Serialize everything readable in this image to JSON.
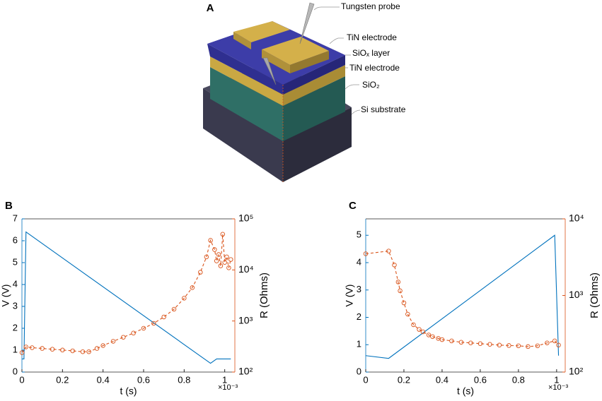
{
  "diagram": {
    "panel": "A",
    "labels": [
      "Tungsten probe",
      "TiN electrode",
      "SiOₓ layer",
      "TiN electrode",
      "SiO₂",
      "Si substrate"
    ]
  },
  "chart_data": [
    {
      "panel": "B",
      "type": "line",
      "xlabel": "t (s)",
      "ylabel": "V (V)",
      "y2label": "R (Ohms)",
      "x_exponent_label": "×10⁻³",
      "xlim": [
        0,
        1.05
      ],
      "xticks": [
        0,
        0.2,
        0.4,
        0.6,
        0.8,
        1
      ],
      "ylim": [
        0,
        7
      ],
      "yticks": [
        0,
        1,
        2,
        3,
        4,
        5,
        6,
        7
      ],
      "y2lim": [
        100,
        100000
      ],
      "y2scale": "log",
      "y2ticks": [
        {
          "value": 100,
          "label": "10²"
        },
        {
          "value": 1000,
          "label": "10³"
        },
        {
          "value": 10000,
          "label": "10⁴"
        },
        {
          "value": 100000,
          "label": "10⁵"
        }
      ],
      "series": [
        {
          "color": "#0072bd",
          "axis": "y",
          "linestyle": "solid",
          "x": [
            0,
            0.01,
            0.02,
            0.93,
            0.96,
            1.03
          ],
          "values": [
            0.6,
            0.6,
            6.4,
            0.4,
            0.6,
            0.6
          ]
        },
        {
          "color": "#d95319",
          "axis": "y2",
          "linestyle": "dashed",
          "marker": "circle",
          "x": [
            0,
            0.02,
            0.05,
            0.1,
            0.15,
            0.2,
            0.25,
            0.3,
            0.33,
            0.37,
            0.4,
            0.45,
            0.5,
            0.55,
            0.6,
            0.65,
            0.7,
            0.75,
            0.8,
            0.84,
            0.88,
            0.91,
            0.93,
            0.95,
            0.96,
            0.97,
            0.98,
            0.99,
            1.0,
            1.01,
            1.02,
            1.03
          ],
          "values": [
            240,
            310,
            300,
            290,
            280,
            270,
            260,
            250,
            250,
            290,
            330,
            400,
            480,
            580,
            720,
            900,
            1200,
            1700,
            2800,
            4500,
            9000,
            18000,
            38000,
            25000,
            15000,
            20000,
            12000,
            50000,
            14000,
            18000,
            11000,
            16000
          ]
        }
      ]
    },
    {
      "panel": "C",
      "type": "line",
      "xlabel": "t (s)",
      "ylabel": "V (V)",
      "y2label": "R (Ohms)",
      "x_exponent_label": "×10⁻³",
      "xlim": [
        0,
        1.045
      ],
      "xticks": [
        0,
        0.2,
        0.4,
        0.6,
        0.8,
        1
      ],
      "ylim": [
        0,
        5.6
      ],
      "yticks": [
        0,
        1,
        2,
        3,
        4,
        5
      ],
      "y2lim": [
        100,
        10000
      ],
      "y2scale": "log",
      "y2ticks": [
        {
          "value": 100,
          "label": "10²"
        },
        {
          "value": 1000,
          "label": "10³"
        },
        {
          "value": 10000,
          "label": "10⁴"
        }
      ],
      "series": [
        {
          "color": "#0072bd",
          "axis": "y",
          "linestyle": "solid",
          "x": [
            0,
            0.12,
            0.99,
            1.01
          ],
          "values": [
            0.6,
            0.5,
            5.0,
            0.6
          ]
        },
        {
          "color": "#d95319",
          "axis": "y2",
          "linestyle": "dashed",
          "marker": "circle",
          "x": [
            0,
            0.12,
            0.15,
            0.17,
            0.18,
            0.2,
            0.22,
            0.25,
            0.28,
            0.3,
            0.33,
            0.35,
            0.38,
            0.4,
            0.45,
            0.5,
            0.55,
            0.6,
            0.65,
            0.7,
            0.75,
            0.8,
            0.85,
            0.9,
            0.95,
            0.99,
            1.01
          ],
          "values": [
            3500,
            3800,
            2500,
            1500,
            1150,
            800,
            570,
            415,
            360,
            335,
            305,
            290,
            275,
            265,
            255,
            245,
            240,
            235,
            230,
            225,
            222,
            220,
            215,
            220,
            240,
            255,
            225
          ]
        }
      ]
    }
  ]
}
